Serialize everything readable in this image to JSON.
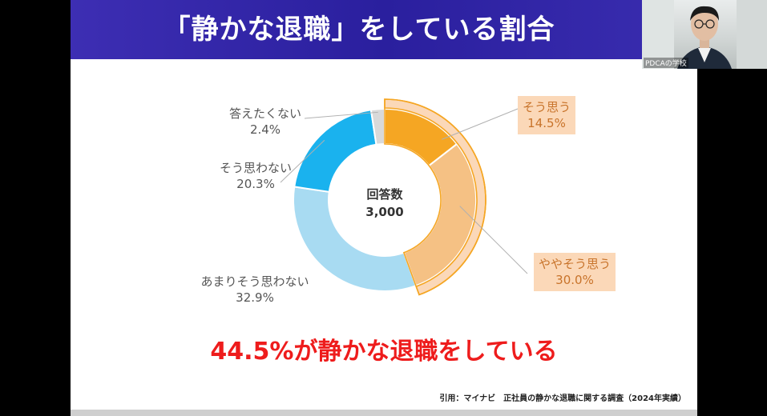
{
  "slide": {
    "title": "「静かな退職」をしている割合",
    "highlight": "44.5%が静かな退職をしている",
    "citation": "引用：マイナビ　正社員の静かな退職に関する調査（2024年実績）"
  },
  "webcam": {
    "label": "PDCAの学校"
  },
  "chart_data": {
    "type": "pie",
    "center_label": "回答数",
    "center_value": "3,000",
    "slices": [
      {
        "label": "そう思う",
        "value": 14.5,
        "value_text": "14.5%",
        "color": "#f5a623"
      },
      {
        "label": "ややそう思う",
        "value": 30.0,
        "value_text": "30.0%",
        "color": "#f5c184"
      },
      {
        "label": "あまりそう思わない",
        "value": 32.9,
        "value_text": "32.9%",
        "color": "#a8dbf2"
      },
      {
        "label": "そう思わない",
        "value": 20.3,
        "value_text": "20.3%",
        "color": "#1ab2ee"
      },
      {
        "label": "答えたくない",
        "value": 2.4,
        "value_text": "2.4%",
        "color": "#d9d9d9"
      }
    ],
    "highlight_ring_color": "#f5a623"
  }
}
